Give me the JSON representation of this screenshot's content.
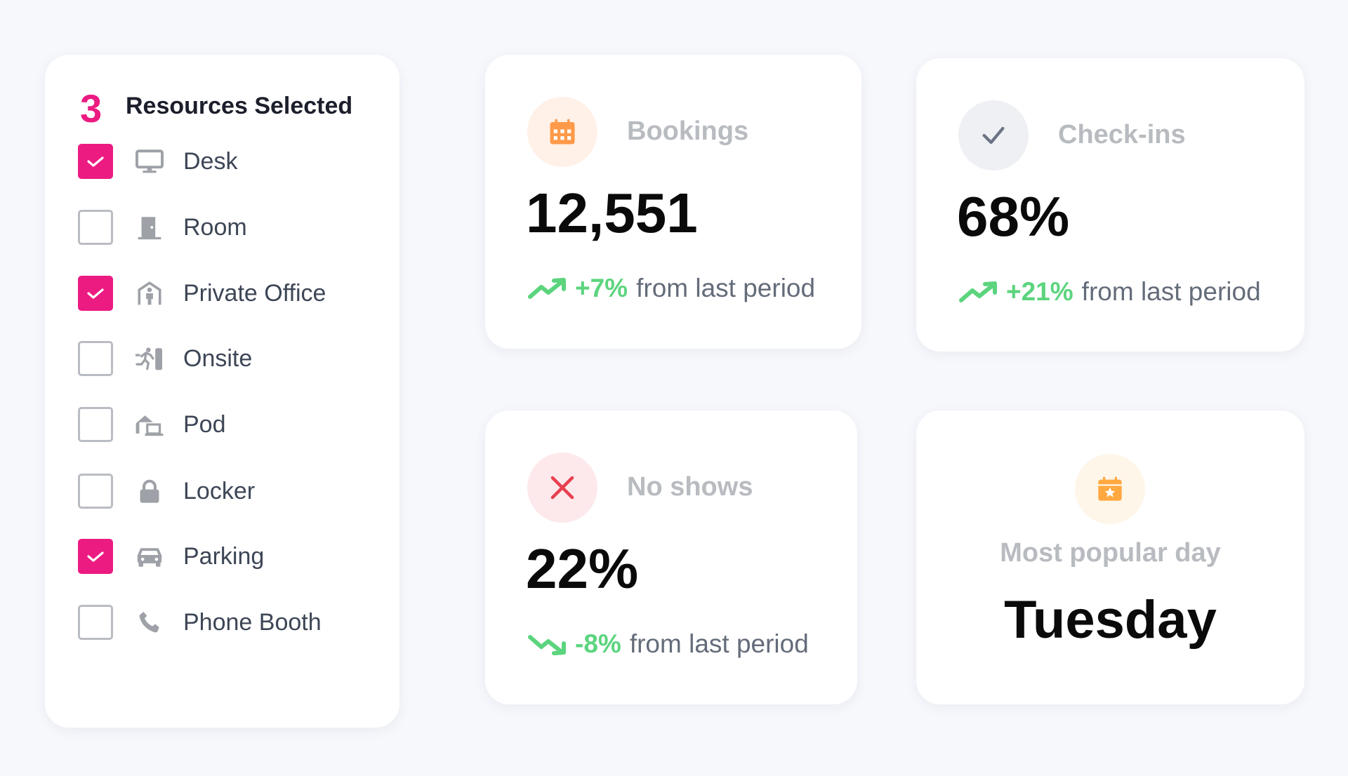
{
  "resources": {
    "count": "3",
    "title": "Resources Selected",
    "items": [
      {
        "label": "Desk",
        "icon": "monitor-icon",
        "checked": true
      },
      {
        "label": "Room",
        "icon": "door-icon",
        "checked": false
      },
      {
        "label": "Private Office",
        "icon": "office-person-icon",
        "checked": true
      },
      {
        "label": "Onsite",
        "icon": "person-entering-icon",
        "checked": false
      },
      {
        "label": "Pod",
        "icon": "home-laptop-icon",
        "checked": false
      },
      {
        "label": "Locker",
        "icon": "lock-icon",
        "checked": false
      },
      {
        "label": "Parking",
        "icon": "car-icon",
        "checked": true
      },
      {
        "label": "Phone Booth",
        "icon": "phone-icon",
        "checked": false
      }
    ]
  },
  "stats": {
    "bookings": {
      "title": "Bookings",
      "value": "12,551",
      "change": "+7%",
      "suffix": "from last period",
      "direction": "up"
    },
    "checkins": {
      "title": "Check-ins",
      "value": "68%",
      "change": "+21%",
      "suffix": "from last period",
      "direction": "up"
    },
    "noshows": {
      "title": "No shows",
      "value": "22%",
      "change": "-8%",
      "suffix": "from last period",
      "direction": "down"
    },
    "popular": {
      "title": "Most popular day",
      "value": "Tuesday"
    }
  },
  "colors": {
    "accent": "#ec1b82",
    "positive": "#5cd47e",
    "orange": "#ff9a4a",
    "red": "#e8404f"
  }
}
